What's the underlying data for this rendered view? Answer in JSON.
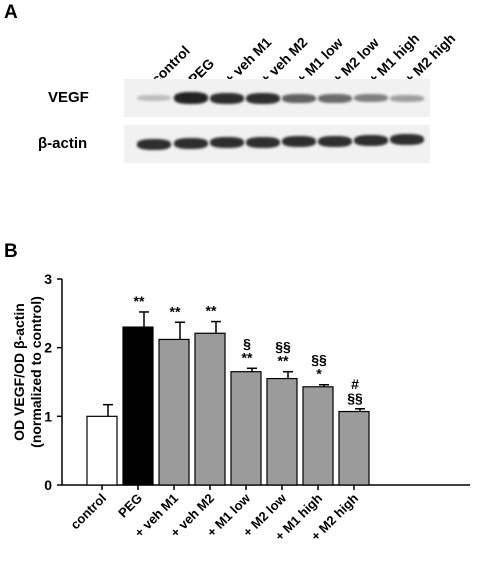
{
  "panel_a": {
    "letter": "A",
    "lanes": [
      "control",
      "PEG",
      "+ veh M1",
      "+ veh M2",
      "+ M1 low",
      "+ M2 low",
      "+ M1 high",
      "+ M2 high"
    ],
    "blots": [
      {
        "label": "VEGF",
        "intensity": [
          0.2,
          0.95,
          0.9,
          0.9,
          0.65,
          0.6,
          0.5,
          0.35
        ]
      },
      {
        "label": "β-actin",
        "intensity": [
          0.9,
          0.9,
          0.9,
          0.9,
          0.9,
          0.9,
          0.9,
          0.9
        ]
      }
    ]
  },
  "panel_b": {
    "letter": "B"
  },
  "chart_data": {
    "type": "bar",
    "categories": [
      "control",
      "PEG",
      "+ veh M1",
      "+ veh M2",
      "+ M1 low",
      "+ M2 low",
      "+ M1 high",
      "+ M2 high"
    ],
    "values": [
      1.0,
      2.3,
      2.12,
      2.21,
      1.65,
      1.55,
      1.43,
      1.07
    ],
    "errors": [
      0.17,
      0.22,
      0.25,
      0.17,
      0.05,
      0.1,
      0.03,
      0.04
    ],
    "bar_colors": [
      "#ffffff",
      "#000000",
      "#9b9b9b",
      "#9b9b9b",
      "#9b9b9b",
      "#9b9b9b",
      "#9b9b9b",
      "#9b9b9b"
    ],
    "annotations": [
      [],
      [
        "**"
      ],
      [
        "**"
      ],
      [
        "**"
      ],
      [
        "§",
        "**"
      ],
      [
        "§§",
        "**"
      ],
      [
        "§§",
        "*"
      ],
      [
        "#",
        "§§"
      ]
    ],
    "ylabel_lines": [
      "OD VEGF/OD β-actin",
      "(normalized to control)"
    ],
    "yticks": [
      0,
      1,
      2,
      3
    ],
    "ylim": [
      0,
      3
    ]
  }
}
